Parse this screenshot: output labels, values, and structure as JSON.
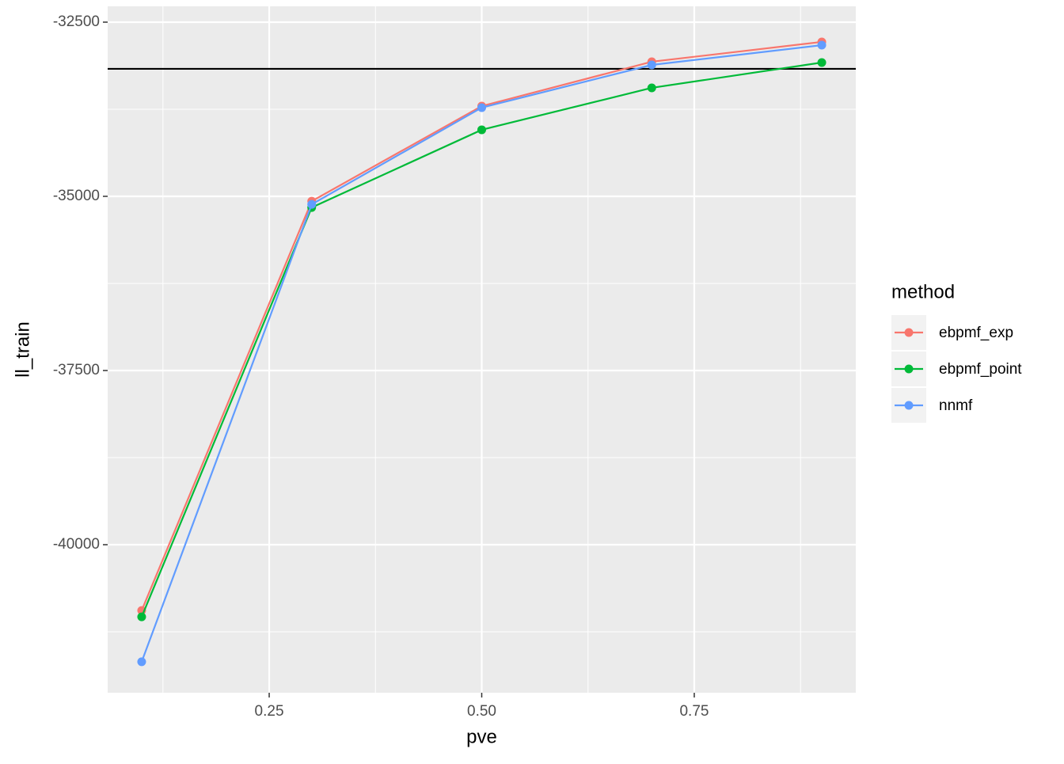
{
  "chart_data": {
    "type": "line",
    "x_label": "pve",
    "y_label": "ll_train",
    "x": [
      0.1,
      0.3,
      0.5,
      0.7,
      0.9
    ],
    "series": [
      {
        "name": "ebpmf_exp",
        "color": "#F8766D",
        "values": [
          -40945,
          -35070,
          -33705,
          -33068,
          -32784
        ]
      },
      {
        "name": "ebpmf_point",
        "color": "#00BA38",
        "values": [
          -41035,
          -35160,
          -34045,
          -33443,
          -33080
        ]
      },
      {
        "name": "nnmf",
        "color": "#619CFF",
        "values": [
          -41680,
          -35115,
          -33727,
          -33114,
          -32830
        ]
      }
    ],
    "hline": -33170,
    "xlim": [
      0.06,
      0.94
    ],
    "xticks": [
      0.25,
      0.5,
      0.75
    ],
    "x_minor_ticks": [
      0.125,
      0.375,
      0.625,
      0.875
    ],
    "ylim": [
      -42125,
      -32273
    ],
    "yticks": [
      -40000,
      -37500,
      -35000,
      -32500
    ],
    "y_minor_ticks": [
      -41250,
      -38750,
      -36250,
      -33750
    ],
    "legend_title": "method",
    "legend_position": "right",
    "grid": true
  }
}
